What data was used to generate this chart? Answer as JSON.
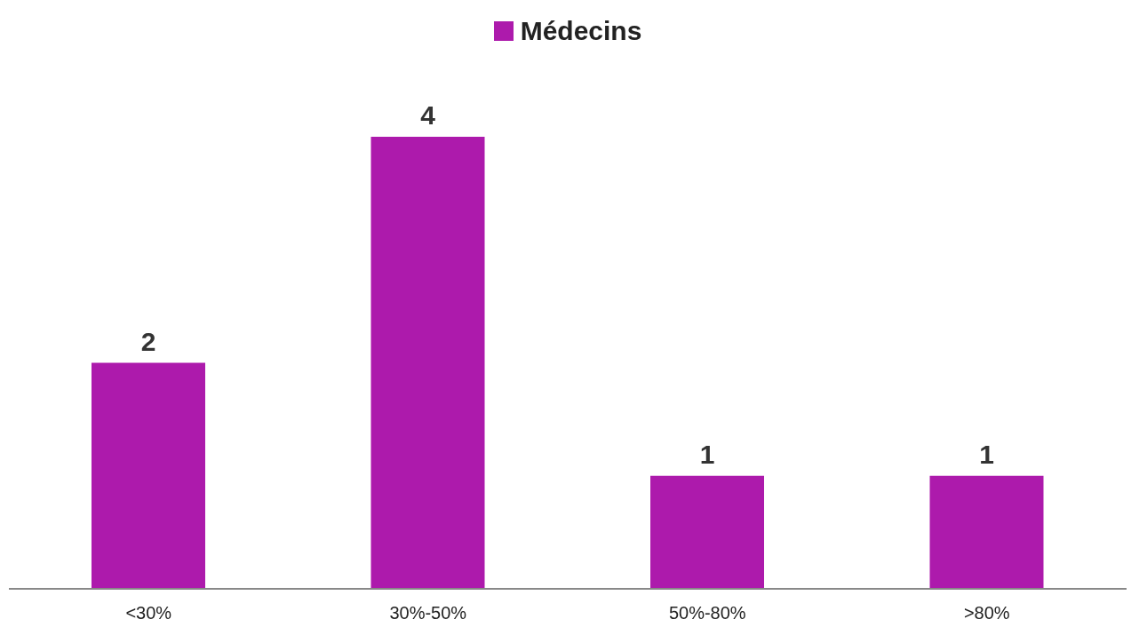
{
  "chart_data": {
    "type": "bar",
    "categories": [
      "<30%",
      "30%-50%",
      "50%-80%",
      ">80%"
    ],
    "series": [
      {
        "name": "Médecins",
        "color": "#ad1aac",
        "values": [
          2,
          4,
          1,
          1
        ]
      }
    ],
    "data_labels": true,
    "legend": "top"
  }
}
